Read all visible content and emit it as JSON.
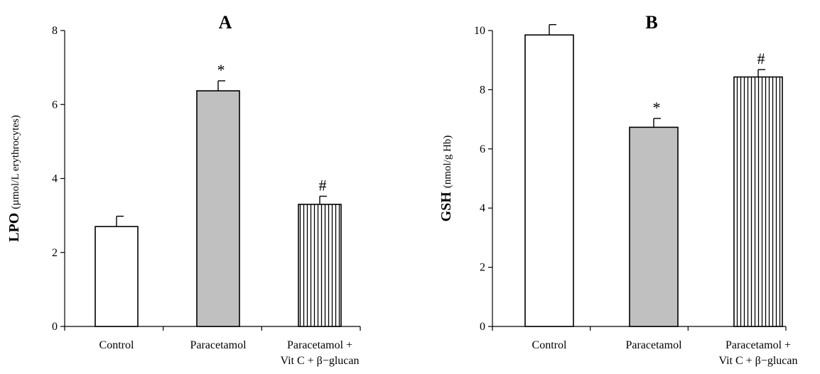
{
  "chart_data": [
    {
      "type": "bar",
      "title": "A",
      "ylabel_main": "LPO",
      "ylabel_unit": "(µmol/L erythrocytes)",
      "categories": [
        "Control",
        "Paracetamol",
        "Paracetamol +|Vit C + β−glucan"
      ],
      "values": [
        2.7,
        6.37,
        3.3
      ],
      "errors": [
        0.28,
        0.27,
        0.22
      ],
      "annotations": [
        "",
        "*",
        "#"
      ],
      "yticks": [
        0,
        2,
        4,
        6,
        8
      ],
      "ylim": [
        0,
        8
      ],
      "fills": [
        "white",
        "gray",
        "stripes"
      ],
      "grid": false
    },
    {
      "type": "bar",
      "title": "B",
      "ylabel_main": "GSH",
      "ylabel_unit": "(nmol/g Hb)",
      "categories": [
        "Control",
        "Paracetamol",
        "Paracetamol +|Vit C + β−glucan"
      ],
      "values": [
        9.85,
        6.73,
        8.43
      ],
      "errors": [
        0.35,
        0.3,
        0.25
      ],
      "annotations": [
        "",
        "*",
        "#"
      ],
      "yticks": [
        0,
        2,
        4,
        6,
        8,
        10
      ],
      "ylim": [
        0,
        10
      ],
      "fills": [
        "white",
        "gray",
        "stripes"
      ],
      "grid": false
    }
  ],
  "colors": {
    "bar_gray": "#c0c0c0",
    "axis": "#000000",
    "bar_white": "#ffffff"
  }
}
